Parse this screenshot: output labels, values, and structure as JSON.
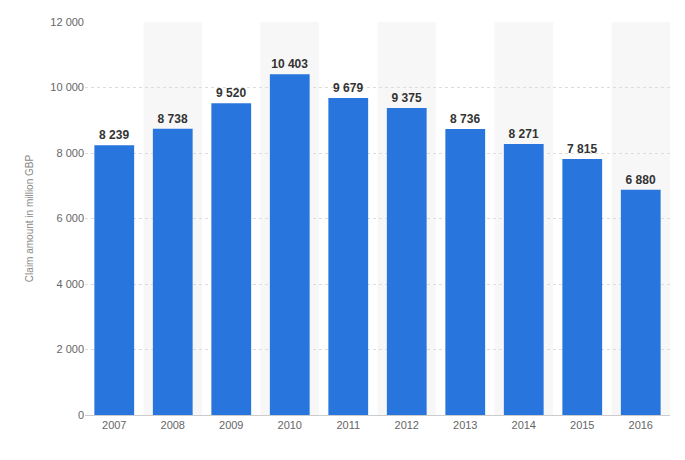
{
  "chart_data": {
    "type": "bar",
    "y_label": "Claim amount in million GBP",
    "categories": [
      "2007",
      "2008",
      "2009",
      "2010",
      "2011",
      "2012",
      "2013",
      "2014",
      "2015",
      "2016"
    ],
    "values": [
      8239,
      8738,
      9520,
      10403,
      9679,
      9375,
      8736,
      8271,
      7815,
      6880
    ],
    "value_labels": [
      "8 239",
      "8 738",
      "9 520",
      "10 403",
      "9 679",
      "9 375",
      "8 736",
      "8 271",
      "7 815",
      "6 880"
    ],
    "color": "#2876dd",
    "ylim": [
      0,
      12000
    ],
    "yticks": [
      0,
      {
        "value": 2000,
        "label": "2 000"
      },
      {
        "value": 4000,
        "label": "4 000"
      },
      {
        "value": 6000,
        "label": "6 000"
      },
      {
        "value": 8000,
        "label": "8 000"
      },
      {
        "value": 10000,
        "label": "10 000"
      },
      {
        "value": 12000,
        "label": "12 000"
      }
    ],
    "grid": true,
    "data_labels": true
  }
}
